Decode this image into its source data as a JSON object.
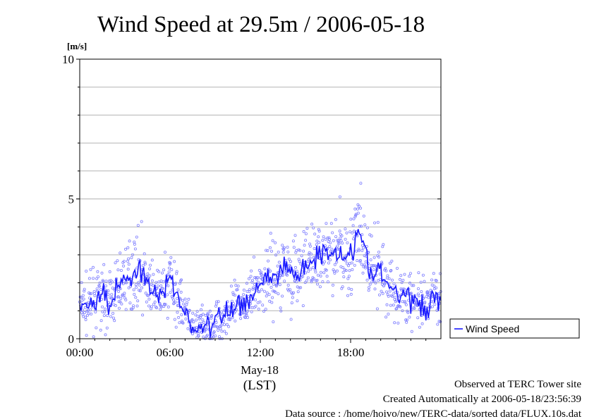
{
  "chart_data": {
    "type": "scatter",
    "title": "Wind Speed at 29.5m / 2006-05-18",
    "ylabel": "[m/s]",
    "xlabel": "(LST)",
    "date_label": "May-18",
    "ylim": [
      0,
      10
    ],
    "xlim": [
      0,
      24
    ],
    "x_units": "hours",
    "y_ticks": [
      "0",
      "5",
      "10"
    ],
    "x_ticks": [
      {
        "x": 0,
        "label": "00:00"
      },
      {
        "x": 6,
        "label": "06:00"
      },
      {
        "x": 12,
        "label": "12:00"
      },
      {
        "x": 18,
        "label": "18:00"
      }
    ],
    "grid": true,
    "legend_position": "right",
    "series": [
      {
        "name": "Wind Speed",
        "style": "line with scatter points",
        "color": "#1a1aff",
        "points_color": "#8080ff",
        "x": [
          0.0,
          0.5,
          1.0,
          1.5,
          2.0,
          2.5,
          3.0,
          3.5,
          4.0,
          4.5,
          5.0,
          5.5,
          6.0,
          6.5,
          7.0,
          7.5,
          8.0,
          8.5,
          9.0,
          9.5,
          10.0,
          10.5,
          11.0,
          11.5,
          12.0,
          12.5,
          13.0,
          13.5,
          14.0,
          14.5,
          15.0,
          15.5,
          16.0,
          16.5,
          17.0,
          17.5,
          18.0,
          18.5,
          19.0,
          19.5,
          20.0,
          20.5,
          21.0,
          21.5,
          22.0,
          22.5,
          23.0,
          23.5
        ],
        "values": [
          1.2,
          1.2,
          1.4,
          1.6,
          1.3,
          1.8,
          2.1,
          2.3,
          2.6,
          1.9,
          1.5,
          1.6,
          2.2,
          1.6,
          0.9,
          0.3,
          0.5,
          0.4,
          0.6,
          0.8,
          1.0,
          1.2,
          1.3,
          1.6,
          2.0,
          2.3,
          2.1,
          2.6,
          2.4,
          2.3,
          2.6,
          2.9,
          3.0,
          3.1,
          3.2,
          3.0,
          3.1,
          3.8,
          3.0,
          2.2,
          2.4,
          1.9,
          1.6,
          1.5,
          1.5,
          1.2,
          1.0,
          1.5
        ]
      }
    ]
  },
  "footer": {
    "line1": "Observed at TERC Tower site",
    "line2": "Created Automatically at 2006-05-18/23:56:39",
    "line3": "Data source : /home/hoivo/new/TERC-data/sorted  data/FLUX.10s.dat"
  }
}
